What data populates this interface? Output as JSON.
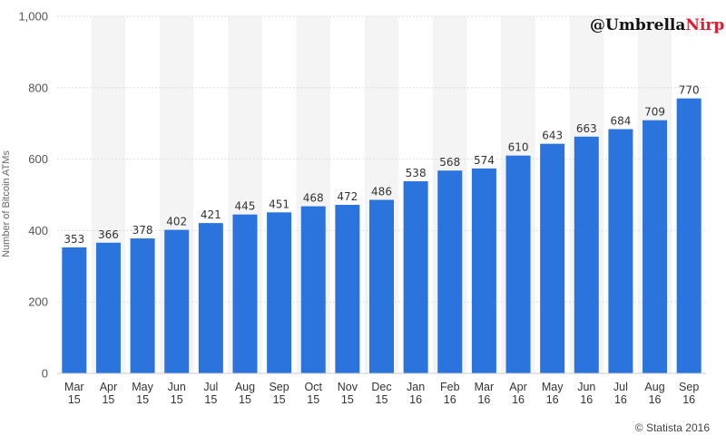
{
  "chart_data": {
    "type": "bar",
    "categories": [
      [
        "Mar",
        "15"
      ],
      [
        "Apr",
        "15"
      ],
      [
        "May",
        "15"
      ],
      [
        "Jun",
        "15"
      ],
      [
        "Jul",
        "15"
      ],
      [
        "Aug",
        "15"
      ],
      [
        "Sep",
        "15"
      ],
      [
        "Oct",
        "15"
      ],
      [
        "Nov",
        "15"
      ],
      [
        "Dec",
        "15"
      ],
      [
        "Jan",
        "16"
      ],
      [
        "Feb",
        "16"
      ],
      [
        "Mar",
        "16"
      ],
      [
        "Apr",
        "16"
      ],
      [
        "May",
        "16"
      ],
      [
        "Jun",
        "16"
      ],
      [
        "Jul",
        "16"
      ],
      [
        "Aug",
        "16"
      ],
      [
        "Sep",
        "16"
      ]
    ],
    "values": [
      353,
      366,
      378,
      402,
      421,
      445,
      451,
      468,
      472,
      486,
      538,
      568,
      574,
      610,
      643,
      663,
      684,
      709,
      770
    ],
    "ylabel": "Number of Bitcoin ATMs",
    "ylim": [
      0,
      1000
    ],
    "yticks": [
      0,
      200,
      400,
      600,
      800,
      1000
    ],
    "ytick_labels": [
      "0",
      "200",
      "400",
      "600",
      "800",
      "1,000"
    ],
    "grid": true,
    "bar_color": "#2b73dd",
    "band_color": "#f4f4f4"
  },
  "watermark": {
    "prefix": "@Umbrella",
    "accent": "Nirp",
    "accent_color": "#e21c2f"
  },
  "credit": "© Statista 2016"
}
